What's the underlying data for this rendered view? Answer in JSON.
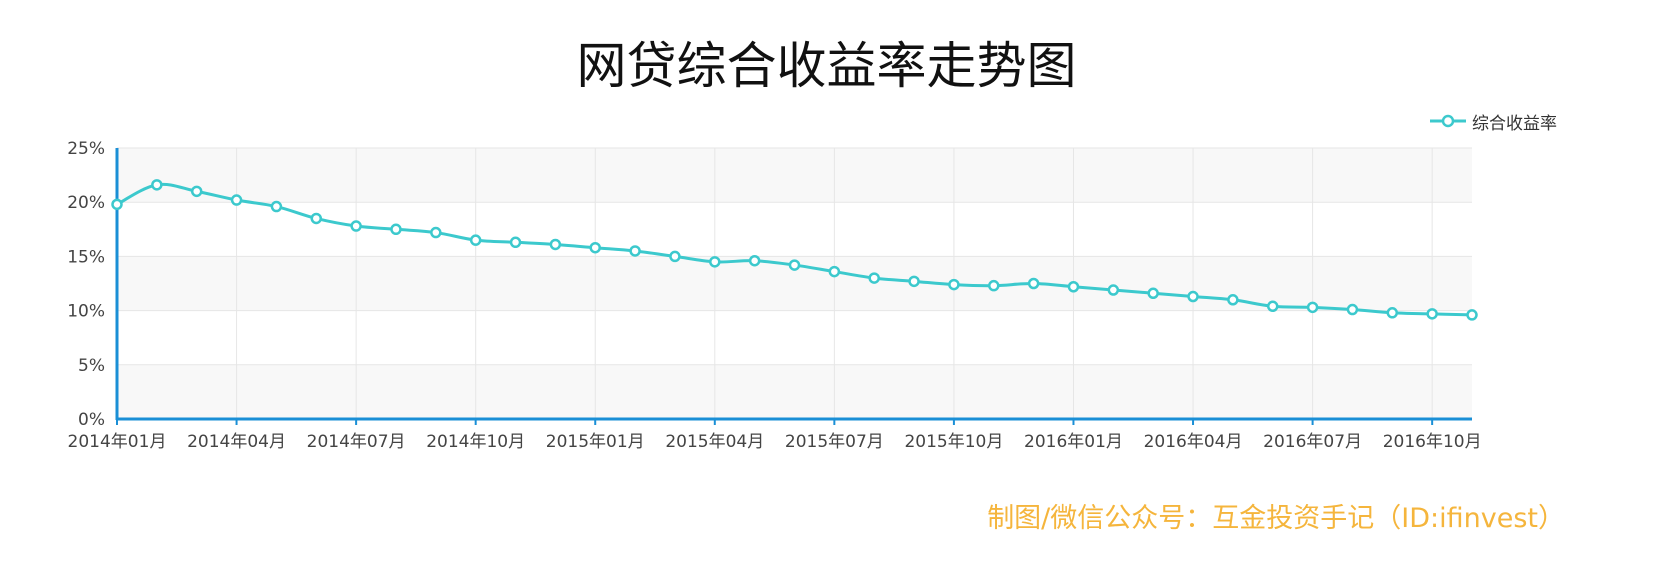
{
  "colors": {
    "line": "#3cc9cd",
    "axis": "#1a8fd6",
    "band": "#f8f8f8",
    "grid": "#e6e6e6",
    "credit": "#f5b53c"
  },
  "credit_text": "制图/微信公众号：互金投资手记（ID:ifinvest）",
  "chart_data": {
    "type": "line",
    "title": "网贷综合收益率走势图",
    "xlabel": "",
    "ylabel": "",
    "legend": {
      "position": "top-right",
      "entries": [
        "综合收益率"
      ]
    },
    "grid": true,
    "ylim": [
      0,
      25
    ],
    "y_ticks": [
      "0%",
      "5%",
      "10%",
      "15%",
      "20%",
      "25%"
    ],
    "x_ticks": [
      "2014年01月",
      "2014年04月",
      "2014年07月",
      "2014年10月",
      "2015年01月",
      "2015年04月",
      "2015年07月",
      "2015年10月",
      "2016年01月",
      "2016年04月",
      "2016年07月",
      "2016年10月"
    ],
    "x": [
      "2014-01",
      "2014-02",
      "2014-03",
      "2014-04",
      "2014-05",
      "2014-06",
      "2014-07",
      "2014-08",
      "2014-09",
      "2014-10",
      "2014-11",
      "2014-12",
      "2015-01",
      "2015-02",
      "2015-03",
      "2015-04",
      "2015-05",
      "2015-06",
      "2015-07",
      "2015-08",
      "2015-09",
      "2015-10",
      "2015-11",
      "2015-12",
      "2016-01",
      "2016-02",
      "2016-03",
      "2016-04",
      "2016-05",
      "2016-06",
      "2016-07",
      "2016-08",
      "2016-09",
      "2016-10",
      "2016-11"
    ],
    "series": [
      {
        "name": "综合收益率",
        "values": [
          19.8,
          21.6,
          21.0,
          20.2,
          19.6,
          18.5,
          17.8,
          17.5,
          17.2,
          16.5,
          16.3,
          16.1,
          15.8,
          15.5,
          15.0,
          14.5,
          14.6,
          14.2,
          13.6,
          13.0,
          12.7,
          12.4,
          12.3,
          12.5,
          12.2,
          11.9,
          11.6,
          11.3,
          11.0,
          10.4,
          10.3,
          10.1,
          9.8,
          9.7,
          9.6
        ]
      }
    ]
  }
}
